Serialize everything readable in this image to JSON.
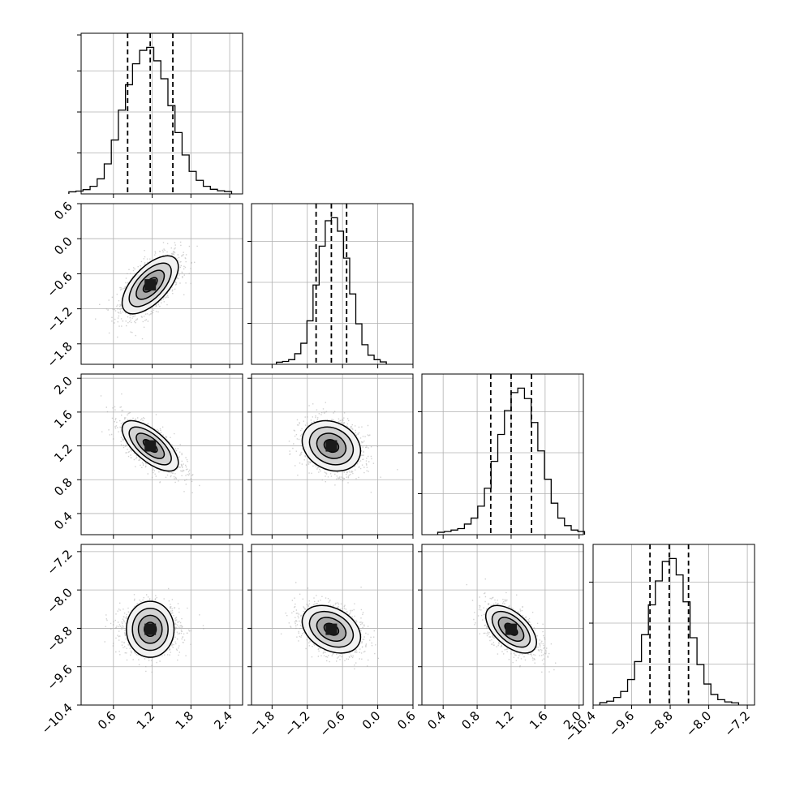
{
  "chart_data": {
    "type": "corner",
    "grid": true,
    "parameters": [
      {
        "ticks": [
          0.6,
          1.2,
          1.8,
          2.4
        ],
        "range": [
          0.1,
          2.6
        ],
        "quantiles": [
          0.82,
          1.17,
          1.52
        ]
      },
      {
        "ticks": [
          -1.8,
          -1.2,
          -0.6,
          0.0,
          0.6
        ],
        "range": [
          -2.15,
          0.6
        ],
        "quantiles": [
          -1.05,
          -0.79,
          -0.53
        ]
      },
      {
        "ticks": [
          0.4,
          0.8,
          1.2,
          1.6,
          2.0
        ],
        "range": [
          0.15,
          2.05
        ],
        "quantiles": [
          0.96,
          1.2,
          1.44
        ]
      },
      {
        "ticks": [
          -10.4,
          -9.6,
          -8.8,
          -8.0,
          -7.2
        ],
        "range": [
          -10.4,
          -7.05
        ],
        "quantiles": [
          -9.22,
          -8.82,
          -8.42
        ]
      }
    ],
    "tick_labels": [
      [
        "0.6",
        "1.2",
        "1.8",
        "2.4"
      ],
      [
        "−1.8",
        "−1.2",
        "−0.6",
        "0.0",
        "0.6"
      ],
      [
        "0.4",
        "0.8",
        "1.2",
        "1.6",
        "2.0"
      ],
      [
        "−10.4",
        "−9.6",
        "−8.8",
        "−8.0",
        "−7.2"
      ]
    ],
    "histograms": [
      [
        0.003,
        0.008,
        0.018,
        0.04,
        0.09,
        0.19,
        0.35,
        0.55,
        0.72,
        0.86,
        0.95,
        0.97,
        0.88,
        0.76,
        0.58,
        0.4,
        0.25,
        0.14,
        0.08,
        0.04,
        0.02,
        0.01,
        0.005
      ],
      [
        0.003,
        0.008,
        0.02,
        0.06,
        0.13,
        0.28,
        0.52,
        0.78,
        0.95,
        0.97,
        0.88,
        0.7,
        0.46,
        0.26,
        0.12,
        0.05,
        0.02,
        0.005
      ],
      [
        0.005,
        0.01,
        0.02,
        0.03,
        0.06,
        0.1,
        0.18,
        0.3,
        0.48,
        0.66,
        0.82,
        0.94,
        0.97,
        0.9,
        0.74,
        0.55,
        0.36,
        0.2,
        0.1,
        0.05,
        0.02,
        0.01
      ],
      [
        0.005,
        0.015,
        0.04,
        0.08,
        0.16,
        0.28,
        0.46,
        0.66,
        0.82,
        0.95,
        0.97,
        0.86,
        0.68,
        0.44,
        0.26,
        0.13,
        0.06,
        0.025,
        0.01,
        0.004
      ]
    ],
    "pairs": [
      {
        "row": 1,
        "col": 0,
        "mean": [
          1.17,
          -0.79
        ],
        "sd": [
          0.35,
          0.4
        ],
        "rho": 0.62
      },
      {
        "row": 2,
        "col": 0,
        "mean": [
          1.17,
          1.2
        ],
        "sd": [
          0.35,
          0.24
        ],
        "rho": -0.67
      },
      {
        "row": 2,
        "col": 1,
        "mean": [
          -0.79,
          1.2
        ],
        "sd": [
          0.4,
          0.24
        ],
        "rho": -0.2
      },
      {
        "row": 3,
        "col": 0,
        "mean": [
          1.17,
          -8.82
        ],
        "sd": [
          0.35,
          0.4
        ],
        "rho": 0.0
      },
      {
        "row": 3,
        "col": 1,
        "mean": [
          -0.79,
          -8.82
        ],
        "sd": [
          0.4,
          0.4
        ],
        "rho": -0.33
      },
      {
        "row": 3,
        "col": 2,
        "mean": [
          1.2,
          -8.82
        ],
        "sd": [
          0.24,
          0.4
        ],
        "rho": -0.55
      }
    ],
    "contour_levels_sigma": [
      0.5,
      1.0,
      1.5,
      2.0
    ],
    "colors": {
      "line": "#000000",
      "grid": "#b0b0b0",
      "points": "#9a9a9a",
      "frame": "#000000"
    }
  }
}
